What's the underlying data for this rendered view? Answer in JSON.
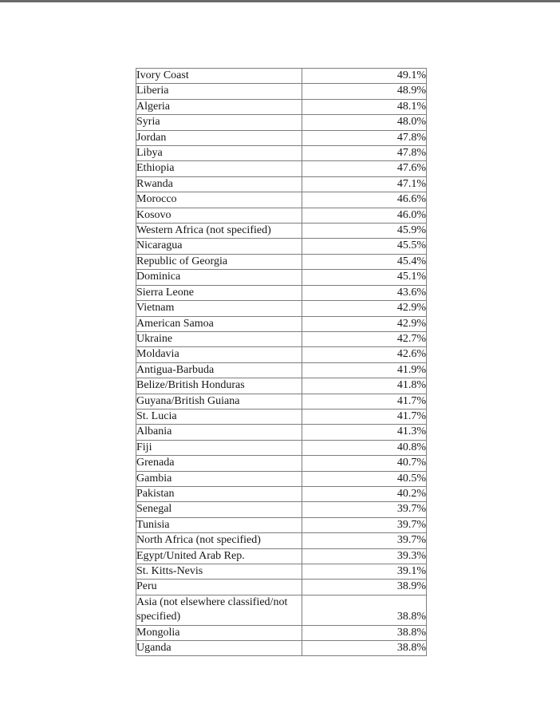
{
  "page": {
    "background": "#ffffff",
    "top_band_color": "#6a6a6a"
  },
  "table": {
    "border_color": "#7d7d7d",
    "text_color": "#161616",
    "columns": [
      "country_or_region",
      "percentage"
    ],
    "rows": [
      {
        "name": "Ivory Coast",
        "value": "49.1%"
      },
      {
        "name": "Liberia",
        "value": "48.9%"
      },
      {
        "name": "Algeria",
        "value": "48.1%"
      },
      {
        "name": "Syria",
        "value": "48.0%"
      },
      {
        "name": "Jordan",
        "value": "47.8%"
      },
      {
        "name": "Libya",
        "value": "47.8%"
      },
      {
        "name": "Ethiopia",
        "value": "47.6%"
      },
      {
        "name": "Rwanda",
        "value": "47.1%"
      },
      {
        "name": "Morocco",
        "value": "46.6%"
      },
      {
        "name": "Kosovo",
        "value": "46.0%"
      },
      {
        "name": "Western Africa (not specified)",
        "value": "45.9%"
      },
      {
        "name": "Nicaragua",
        "value": "45.5%"
      },
      {
        "name": "Republic of Georgia",
        "value": "45.4%"
      },
      {
        "name": "Dominica",
        "value": "45.1%"
      },
      {
        "name": "Sierra Leone",
        "value": "43.6%"
      },
      {
        "name": "Vietnam",
        "value": "42.9%"
      },
      {
        "name": "American Samoa",
        "value": "42.9%"
      },
      {
        "name": "Ukraine",
        "value": "42.7%"
      },
      {
        "name": "Moldavia",
        "value": "42.6%"
      },
      {
        "name": "Antigua-Barbuda",
        "value": "41.9%"
      },
      {
        "name": "Belize/British Honduras",
        "value": "41.8%"
      },
      {
        "name": "Guyana/British Guiana",
        "value": "41.7%"
      },
      {
        "name": "St. Lucia",
        "value": "41.7%"
      },
      {
        "name": "Albania",
        "value": "41.3%"
      },
      {
        "name": "Fiji",
        "value": "40.8%"
      },
      {
        "name": "Grenada",
        "value": "40.7%"
      },
      {
        "name": "Gambia",
        "value": "40.5%"
      },
      {
        "name": "Pakistan",
        "value": "40.2%"
      },
      {
        "name": "Senegal",
        "value": "39.7%"
      },
      {
        "name": "Tunisia",
        "value": "39.7%"
      },
      {
        "name": "North Africa (not specified)",
        "value": "39.7%"
      },
      {
        "name": "Egypt/United Arab Rep.",
        "value": "39.3%"
      },
      {
        "name": "St. Kitts-Nevis",
        "value": "39.1%"
      },
      {
        "name": "Peru",
        "value": "38.9%"
      },
      {
        "name": "Asia (not elsewhere classified/not specified)",
        "value": "38.8%"
      },
      {
        "name": "Mongolia",
        "value": "38.8%"
      },
      {
        "name": "Uganda",
        "value": "38.8%"
      }
    ]
  }
}
